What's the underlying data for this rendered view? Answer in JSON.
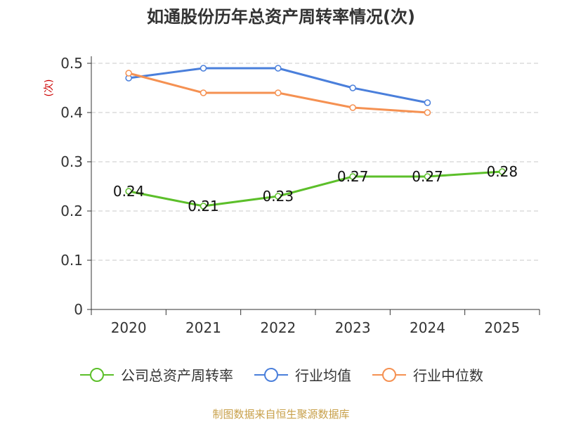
{
  "chart_title": "如通股份历年总资产周转率情况(次)",
  "source_note": "制图数据来自恒生聚源数据库",
  "chart_data": {
    "type": "line",
    "title": "如通股份历年总资产周转率情况(次)",
    "ylabel": "(次)",
    "xlabel": "",
    "categories": [
      "2020",
      "2021",
      "2022",
      "2023",
      "2024",
      "2025"
    ],
    "ylim": [
      0,
      0.5
    ],
    "yticks": [
      "0",
      "0.1",
      "0.2",
      "0.3",
      "0.4",
      "0.5"
    ],
    "grid": true,
    "legend_position": "bottom",
    "series": [
      {
        "name": "公司总资产周转率",
        "color": "#5cbf2a",
        "values": [
          0.24,
          0.21,
          0.23,
          0.27,
          0.27,
          0.28
        ],
        "value_labels": [
          "0.24",
          "0.21",
          "0.23",
          "0.27",
          "0.27",
          "0.28"
        ]
      },
      {
        "name": "行业均值",
        "color": "#4a7fdb",
        "values": [
          0.47,
          0.49,
          0.49,
          0.45,
          0.42,
          null
        ]
      },
      {
        "name": "行业中位数",
        "color": "#f59152",
        "values": [
          0.48,
          0.44,
          0.44,
          0.41,
          0.4,
          null
        ]
      }
    ]
  }
}
